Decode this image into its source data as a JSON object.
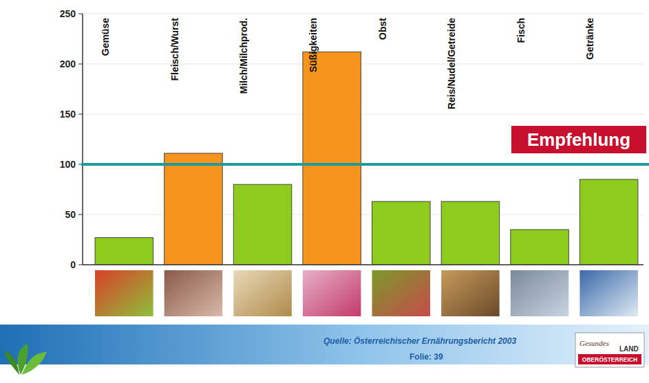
{
  "chart_data": {
    "type": "bar",
    "categories": [
      "Gemüse",
      "Fleisch/Wurst",
      "Milch/Milchprod.",
      "Süßigkeiten",
      "Obst",
      "Reis/Nudel/Getreide",
      "Fisch",
      "Getränke"
    ],
    "values": [
      27,
      111,
      80,
      212,
      63,
      63,
      35,
      85
    ],
    "colors": [
      "#8dcc1c",
      "#f7941d",
      "#8dcc1c",
      "#f7941d",
      "#8dcc1c",
      "#8dcc1c",
      "#8dcc1c",
      "#8dcc1c"
    ],
    "ylim": [
      0,
      250
    ],
    "yticks": [
      0,
      50,
      100,
      150,
      200,
      250
    ],
    "grid": true,
    "annotations": [
      {
        "text": "Empfehlung",
        "y": 100
      }
    ]
  },
  "footer": {
    "source": "Quelle: Österreichischer Ernährungsbericht 2003",
    "slide": "Folie: 39",
    "logo": [
      "Gesundes",
      "LAND",
      "OBERÖSTERREICH"
    ]
  }
}
